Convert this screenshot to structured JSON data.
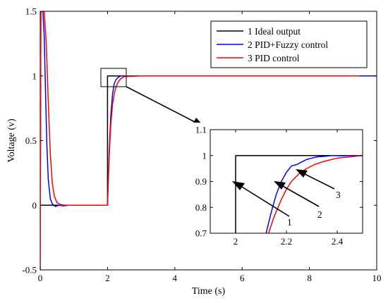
{
  "chart_data": [
    {
      "type": "line",
      "title": "",
      "xlabel": "Time (s)",
      "ylabel": "Voltage (v)",
      "xlim": [
        0,
        10
      ],
      "ylim": [
        -0.5,
        1.5
      ],
      "x_ticks": [
        "0",
        "2",
        "4",
        "6",
        "8",
        "10"
      ],
      "y_ticks": [
        "-0.5",
        "0",
        "0.5",
        "1",
        "1.5"
      ],
      "grid": false,
      "legend_position": "top-right",
      "legend": [
        "1 Ideal output",
        "2 PID+Fuzzy control",
        "3 PID control"
      ],
      "series": [
        {
          "name": "1 Ideal output",
          "color": "#000000",
          "x": [
            0,
            2,
            2,
            10
          ],
          "y": [
            0,
            0,
            1,
            1
          ]
        },
        {
          "name": "2 PID+Fuzzy control",
          "color": "#0000ff",
          "x": [
            0,
            0.02,
            0.04,
            0.08,
            0.12,
            0.16,
            0.2,
            0.24,
            0.3,
            0.36,
            0.45,
            0.55,
            0.7,
            0.85,
            1.0,
            1.5,
            2.0,
            2.05,
            2.1,
            2.15,
            2.2,
            2.25,
            2.3,
            2.35,
            2.4,
            2.5,
            3.0,
            5.0,
            8.0,
            10.0
          ],
          "y": [
            -0.5,
            1.5,
            1.5,
            1.5,
            1.3,
            0.85,
            0.45,
            0.2,
            0.05,
            0.01,
            -0.01,
            0.0,
            -0.005,
            0.0,
            0.0,
            0.0,
            0.0,
            0.42,
            0.7,
            0.86,
            0.94,
            0.97,
            0.985,
            0.995,
            1.0,
            1.0,
            1.0,
            1.0,
            1.0,
            1.0
          ]
        },
        {
          "name": "3 PID control",
          "color": "#ff0000",
          "x": [
            0,
            0.02,
            0.04,
            0.08,
            0.12,
            0.18,
            0.24,
            0.3,
            0.36,
            0.42,
            0.5,
            0.6,
            0.75,
            0.9,
            1.0,
            1.5,
            2.0,
            2.05,
            2.1,
            2.15,
            2.2,
            2.25,
            2.3,
            2.35,
            2.4,
            2.5,
            3.0,
            5.0,
            8.0,
            9.5
          ],
          "y": [
            -0.5,
            1.5,
            1.5,
            1.5,
            1.5,
            1.25,
            0.8,
            0.4,
            0.17,
            0.07,
            0.02,
            0.005,
            0.0,
            0.0,
            0.0,
            0.0,
            0.0,
            0.38,
            0.63,
            0.78,
            0.86,
            0.91,
            0.945,
            0.965,
            0.98,
            0.995,
            1.0,
            1.0,
            1.0,
            1.0
          ]
        }
      ]
    },
    {
      "type": "line",
      "title": "",
      "xlabel": "",
      "ylabel": "",
      "xlim": [
        1.9,
        2.5
      ],
      "ylim": [
        0.7,
        1.1
      ],
      "x_ticks": [
        "2",
        "2.2",
        "2.4"
      ],
      "y_ticks": [
        "0.7",
        "0.8",
        "0.9",
        "1",
        "1.1"
      ],
      "grid": false,
      "annotations": [
        "1",
        "2",
        "3"
      ],
      "series": [
        {
          "name": "1 Ideal output",
          "color": "#000000",
          "x": [
            2.0,
            2.0,
            2.5
          ],
          "y": [
            0.7,
            1.0,
            1.0
          ]
        },
        {
          "name": "2 PID+Fuzzy control",
          "color": "#0000ff",
          "x": [
            2.12,
            2.14,
            2.16,
            2.18,
            2.2,
            2.22,
            2.24,
            2.26,
            2.28,
            2.3,
            2.32,
            2.35,
            2.38,
            2.42,
            2.46,
            2.5
          ],
          "y": [
            0.7,
            0.78,
            0.85,
            0.9,
            0.935,
            0.96,
            0.965,
            0.975,
            0.985,
            0.99,
            0.995,
            0.997,
            1.0,
            0.999,
            1.0,
            1.0
          ]
        },
        {
          "name": "3 PID control",
          "color": "#ff0000",
          "x": [
            2.13,
            2.15,
            2.18,
            2.2,
            2.22,
            2.25,
            2.28,
            2.31,
            2.35,
            2.4,
            2.45,
            2.5
          ],
          "y": [
            0.7,
            0.76,
            0.83,
            0.87,
            0.9,
            0.93,
            0.95,
            0.965,
            0.978,
            0.99,
            0.995,
            1.0
          ]
        }
      ]
    }
  ]
}
